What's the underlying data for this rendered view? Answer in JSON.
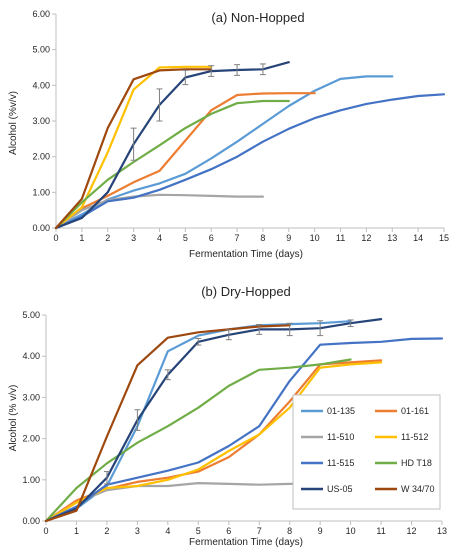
{
  "chart_data": [
    {
      "type": "line",
      "title": "(a) Non-Hopped",
      "xlabel": "Fermentation Time (days)",
      "ylabel": "Alcohol (%v/v)",
      "xlim": [
        0,
        15
      ],
      "ylim": [
        0,
        6
      ],
      "xticks": [
        "0",
        "1",
        "2",
        "3",
        "4",
        "5",
        "6",
        "7",
        "8",
        "9",
        "10",
        "11",
        "12",
        "13",
        "14",
        "15"
      ],
      "yticks": [
        "0.00",
        "1.00",
        "2.00",
        "3.00",
        "4.00",
        "5.00",
        "6.00"
      ],
      "grid": false,
      "legend": "none",
      "series": [
        {
          "color": "#5B9BD5",
          "x": [
            0,
            1,
            2,
            3,
            4,
            5,
            6,
            7,
            8,
            9,
            10,
            11,
            12,
            13
          ],
          "y": [
            0,
            0.38,
            0.8,
            1.05,
            1.25,
            1.52,
            1.95,
            2.42,
            2.92,
            3.42,
            3.85,
            4.18,
            4.25,
            4.25
          ]
        },
        {
          "color": "#ED7D31",
          "x": [
            0,
            1,
            2,
            3,
            4,
            5,
            6,
            7,
            8,
            9,
            10
          ],
          "y": [
            0,
            0.55,
            0.9,
            1.28,
            1.6,
            2.45,
            3.3,
            3.73,
            3.77,
            3.78,
            3.78
          ]
        },
        {
          "color": "#A5A5A5",
          "x": [
            0,
            1,
            2,
            3,
            4,
            5,
            6,
            7,
            8
          ],
          "y": [
            0,
            0.5,
            0.78,
            0.88,
            0.93,
            0.92,
            0.9,
            0.88,
            0.88
          ]
        },
        {
          "color": "#FFC000",
          "x": [
            0,
            1,
            2,
            3,
            4,
            5,
            6
          ],
          "y": [
            0,
            0.58,
            2.12,
            3.88,
            4.5,
            4.52,
            4.52
          ]
        },
        {
          "color": "#4472C4",
          "x": [
            0,
            1,
            2,
            3,
            4,
            5,
            6,
            7,
            8,
            9,
            10,
            11,
            12,
            13,
            14,
            15
          ],
          "y": [
            0,
            0.32,
            0.75,
            0.85,
            1.07,
            1.35,
            1.65,
            2.0,
            2.42,
            2.78,
            3.08,
            3.3,
            3.48,
            3.6,
            3.7,
            3.75
          ]
        },
        {
          "color": "#70AD47",
          "x": [
            0,
            1,
            2,
            3,
            4,
            5,
            6,
            7,
            8,
            9
          ],
          "y": [
            0,
            0.72,
            1.35,
            1.85,
            2.32,
            2.8,
            3.2,
            3.5,
            3.56,
            3.56
          ]
        },
        {
          "color": "#264478",
          "x": [
            0,
            1,
            2,
            3,
            4,
            5,
            6,
            7,
            8,
            9
          ],
          "y": [
            0,
            0.28,
            1.0,
            2.35,
            3.45,
            4.22,
            4.4,
            4.43,
            4.45,
            4.65
          ],
          "error_bars": [
            {
              "x": 3,
              "y": 2.35,
              "err": 0.45
            },
            {
              "x": 4,
              "y": 3.45,
              "err": 0.45
            },
            {
              "x": 5,
              "y": 4.22,
              "err": 0.2
            },
            {
              "x": 6,
              "y": 4.4,
              "err": 0.15
            },
            {
              "x": 7,
              "y": 4.43,
              "err": 0.15
            },
            {
              "x": 8,
              "y": 4.45,
              "err": 0.15
            }
          ]
        },
        {
          "color": "#9E480E",
          "x": [
            0,
            1,
            2,
            3,
            4,
            5,
            6
          ],
          "y": [
            0,
            0.82,
            2.8,
            4.17,
            4.42,
            4.45,
            4.45
          ]
        }
      ]
    },
    {
      "type": "line",
      "title": "(b) Dry-Hopped",
      "xlabel": "Fermentation Time (days)",
      "ylabel": "Alcohol (% v/v)",
      "xlim": [
        0,
        13
      ],
      "ylim": [
        0,
        5
      ],
      "xticks": [
        "0",
        "1",
        "2",
        "3",
        "4",
        "5",
        "6",
        "7",
        "8",
        "9",
        "10",
        "11",
        "12",
        "13"
      ],
      "yticks": [
        "0.00",
        "1.00",
        "2.00",
        "3.00",
        "4.00",
        "5.00"
      ],
      "grid": false,
      "legend": "right-center, boxed, 2 columns",
      "series": [
        {
          "name": "01-135",
          "color": "#5B9BD5",
          "x": [
            0,
            1,
            2,
            3,
            4,
            5,
            6,
            7,
            8,
            9,
            10
          ],
          "y": [
            0,
            0.3,
            0.85,
            2.3,
            4.12,
            4.5,
            4.65,
            4.75,
            4.78,
            4.8,
            4.85
          ]
        },
        {
          "name": "01-161",
          "color": "#ED7D31",
          "x": [
            0,
            1,
            2,
            3,
            4,
            5,
            6,
            7,
            8,
            9,
            10,
            11
          ],
          "y": [
            0,
            0.5,
            0.78,
            0.95,
            1.05,
            1.2,
            1.55,
            2.1,
            2.9,
            3.8,
            3.85,
            3.9
          ]
        },
        {
          "name": "11-510",
          "color": "#A5A5A5",
          "x": [
            0,
            1,
            2,
            3,
            4,
            5,
            6,
            7,
            8,
            9
          ],
          "y": [
            0,
            0.45,
            0.75,
            0.85,
            0.85,
            0.92,
            0.9,
            0.88,
            0.9,
            0.92
          ]
        },
        {
          "name": "11-512",
          "color": "#FFC000",
          "x": [
            0,
            1,
            2,
            3,
            4,
            5,
            6,
            7,
            8,
            9,
            10,
            11
          ],
          "y": [
            0,
            0.45,
            0.8,
            0.85,
            1.0,
            1.25,
            1.7,
            2.1,
            2.75,
            3.72,
            3.8,
            3.85
          ]
        },
        {
          "name": "11-515",
          "color": "#4472C4",
          "x": [
            0,
            1,
            2,
            3,
            4,
            5,
            6,
            7,
            8,
            9,
            10,
            11,
            12,
            13
          ],
          "y": [
            0,
            0.35,
            0.88,
            1.05,
            1.22,
            1.42,
            1.82,
            2.3,
            3.4,
            4.28,
            4.32,
            4.35,
            4.42,
            4.43
          ]
        },
        {
          "name": "HD T18",
          "color": "#70AD47",
          "x": [
            0,
            1,
            2,
            3,
            4,
            5,
            6,
            7,
            8,
            9,
            10
          ],
          "y": [
            0,
            0.8,
            1.4,
            1.9,
            2.3,
            2.75,
            3.28,
            3.67,
            3.72,
            3.8,
            3.92
          ]
        },
        {
          "name": "US-05",
          "color": "#264478",
          "x": [
            0,
            1,
            2,
            3,
            4,
            5,
            6,
            7,
            8,
            9,
            10,
            11
          ],
          "y": [
            0,
            0.3,
            1.05,
            2.45,
            3.55,
            4.35,
            4.52,
            4.65,
            4.65,
            4.68,
            4.8,
            4.9
          ],
          "error_bars": [
            {
              "x": 2,
              "y": 1.05,
              "err": 0.15
            },
            {
              "x": 3,
              "y": 2.45,
              "err": 0.25
            },
            {
              "x": 4,
              "y": 3.55,
              "err": 0.12
            },
            {
              "x": 5,
              "y": 4.35,
              "err": 0.08
            },
            {
              "x": 6,
              "y": 4.52,
              "err": 0.12
            },
            {
              "x": 7,
              "y": 4.65,
              "err": 0.12
            },
            {
              "x": 8,
              "y": 4.65,
              "err": 0.15
            },
            {
              "x": 9,
              "y": 4.68,
              "err": 0.18
            },
            {
              "x": 10,
              "y": 4.8,
              "err": 0.08
            }
          ]
        },
        {
          "name": "W 34/70",
          "color": "#9E480E",
          "x": [
            0,
            1,
            2,
            3,
            4,
            5,
            6,
            7,
            8
          ],
          "y": [
            0,
            0.25,
            2.05,
            3.78,
            4.45,
            4.58,
            4.65,
            4.72,
            4.75
          ]
        }
      ]
    }
  ]
}
